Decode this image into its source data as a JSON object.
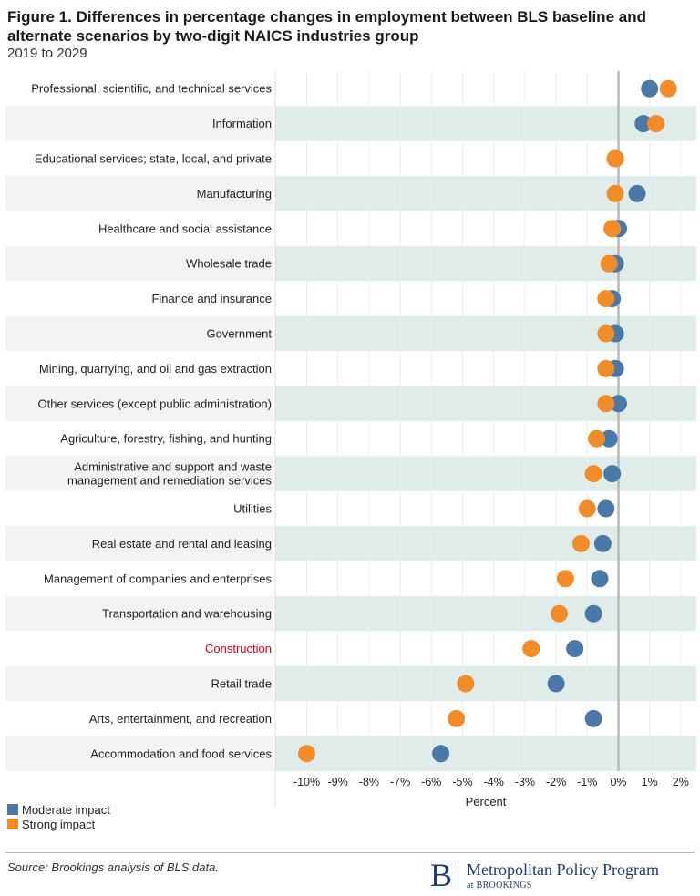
{
  "title": "Figure 1. Differences in percentage changes in employment between BLS baseline and alternate scenarios by two-digit NAICS industries group",
  "subtitle": "2019 to 2029",
  "chart_data": {
    "type": "scatter",
    "xlabel": "Percent",
    "xlim": [
      -11.0,
      2.5
    ],
    "xticks": [
      -10,
      -9,
      -8,
      -7,
      -6,
      -5,
      -4,
      -3,
      -2,
      -1,
      0,
      1,
      2
    ],
    "xtick_labels": [
      "-10%",
      "-9%",
      "-8%",
      "-7%",
      "-6%",
      "-5%",
      "-4%",
      "-3%",
      "-2%",
      "-1%",
      "0%",
      "1%",
      "2%"
    ],
    "highlight_category": "Construction",
    "highlight_color": "#d0021b",
    "categories": [
      "Professional, scientific, and technical services",
      "Information",
      "Educational services; state, local, and private",
      "Manufacturing",
      "Healthcare and social assistance",
      "Wholesale trade",
      "Finance and insurance",
      "Government",
      "Mining, quarrying, and oil and gas extraction",
      "Other services (except public administration)",
      "Agriculture, forestry, fishing, and hunting",
      "Administrative and support and waste management and remediation services",
      "Utilities",
      "Real estate and rental and leasing",
      "Management of companies and enterprises",
      "Transportation and warehousing",
      "Construction",
      "Retail trade",
      "Arts, entertainment, and recreation",
      "Accommodation and food services"
    ],
    "series": [
      {
        "name": "Moderate impact",
        "color": "#4a78a8",
        "values": [
          1.0,
          0.8,
          -0.1,
          0.6,
          0.0,
          -0.1,
          -0.2,
          -0.1,
          -0.1,
          0.0,
          -0.3,
          -0.2,
          -0.4,
          -0.5,
          -0.6,
          -0.8,
          -1.4,
          -2.0,
          -0.8,
          -5.7
        ]
      },
      {
        "name": "Strong impact",
        "color": "#f28c28",
        "values": [
          1.6,
          1.2,
          -0.1,
          -0.1,
          -0.2,
          -0.3,
          -0.4,
          -0.4,
          -0.4,
          -0.4,
          -0.7,
          -0.8,
          -1.0,
          -1.2,
          -1.7,
          -1.9,
          -2.8,
          -4.9,
          -5.2,
          -10.0
        ]
      }
    ]
  },
  "legend": {
    "items": [
      {
        "label": "Moderate impact",
        "color": "#4a78a8"
      },
      {
        "label": "Strong impact",
        "color": "#f28c28"
      }
    ]
  },
  "footer": {
    "source": "Source: Brookings analysis of BLS data.",
    "logo_letter": "B",
    "logo_name": "Metropolitan Policy Program",
    "logo_sub": "at BROOKINGS"
  }
}
